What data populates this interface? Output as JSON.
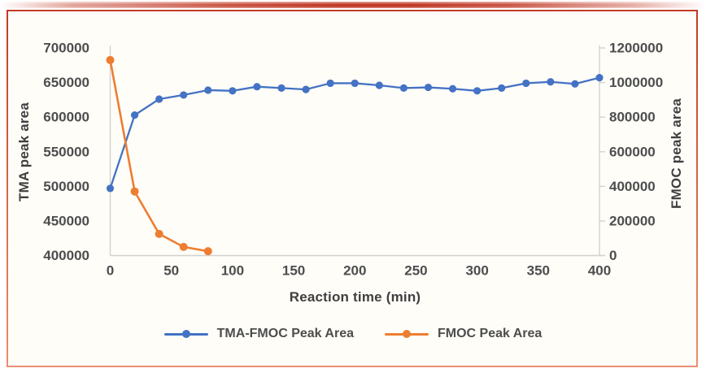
{
  "theme": {
    "accent_red": "#c13a26",
    "accent_red_light": "#ea8e72",
    "axis_color": "#d2d2d2",
    "text_color": "#4d4d4d",
    "title_color": "#3f3f3f",
    "panel_bg": "#fffdf8"
  },
  "chart_data": {
    "type": "line",
    "xlabel": "Reaction time (min)",
    "ylabel_left": "TMA peak area",
    "ylabel_right": "FMOC peak area",
    "x_ticks": [
      0,
      50,
      100,
      150,
      200,
      250,
      300,
      350,
      400
    ],
    "y_left": {
      "min": 400000,
      "max": 700000,
      "ticks": [
        400000,
        450000,
        500000,
        550000,
        600000,
        650000,
        700000
      ]
    },
    "y_right": {
      "min": 0,
      "max": 1200000,
      "ticks": [
        0,
        200000,
        400000,
        600000,
        800000,
        1000000,
        1200000
      ]
    },
    "grid": false,
    "legend_position": "bottom",
    "series": [
      {
        "name": "TMA-FMOC Peak Area",
        "color": "#4472C4",
        "axis": "left",
        "x": [
          0,
          20,
          40,
          60,
          80,
          100,
          120,
          140,
          160,
          180,
          200,
          220,
          240,
          260,
          280,
          300,
          320,
          340,
          360,
          380,
          400
        ],
        "values": [
          497000,
          603000,
          626000,
          632000,
          639000,
          638000,
          644000,
          642000,
          640000,
          649000,
          649000,
          646000,
          642000,
          643000,
          641000,
          638000,
          642000,
          649000,
          651000,
          648000,
          657000
        ]
      },
      {
        "name": "FMOC Peak Area",
        "color": "#ED7D31",
        "axis": "right",
        "x": [
          0,
          20,
          40,
          60,
          80
        ],
        "values": [
          1130000,
          370000,
          125000,
          50000,
          25000
        ]
      }
    ]
  }
}
